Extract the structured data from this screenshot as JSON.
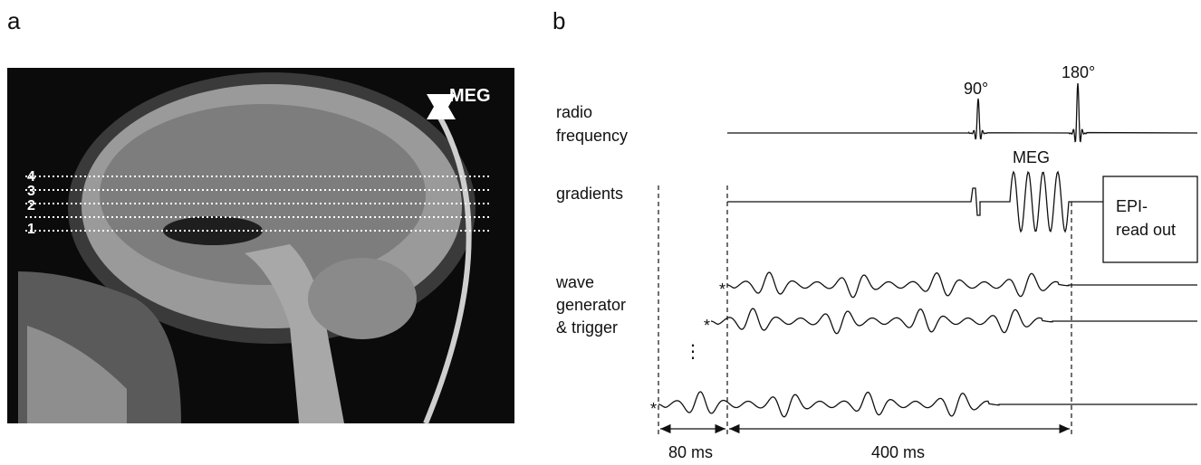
{
  "panel_a": {
    "label": "a",
    "axis_label": "MEG",
    "slices": [
      "1",
      "2",
      "3",
      "4"
    ]
  },
  "panel_b": {
    "label": "b",
    "rows": {
      "radio_frequency": [
        "radio",
        "frequency"
      ],
      "gradients": "gradients",
      "wave_generator": [
        "wave",
        "generator",
        "& trigger"
      ]
    },
    "pulses": [
      "90°",
      "180°"
    ],
    "gradient_label": "MEG",
    "readout": [
      "EPI-",
      "read out"
    ],
    "trigger_marker": "*",
    "durations": [
      "80 ms",
      "400 ms"
    ]
  }
}
